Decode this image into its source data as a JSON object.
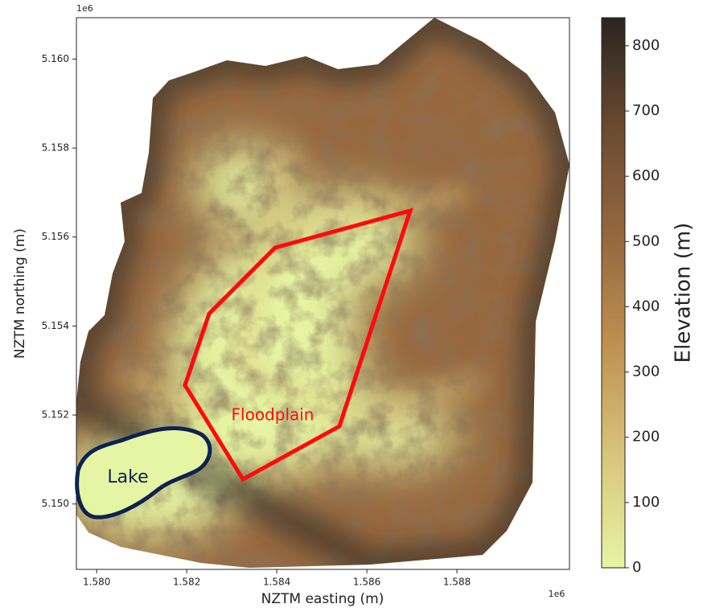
{
  "chart_data": {
    "type": "heatmap",
    "x_label": "NZTM easting (m)",
    "y_label": "NZTM northing (m)",
    "x_offset_label": "1e6",
    "y_offset_label": "1e6",
    "xlim": [
      1579550,
      1590500
    ],
    "ylim": [
      5148530,
      5160930
    ],
    "xticks": [
      {
        "value": 1580000,
        "label": "1.580"
      },
      {
        "value": 1582000,
        "label": "1.582"
      },
      {
        "value": 1584000,
        "label": "1.584"
      },
      {
        "value": 1586000,
        "label": "1.586"
      },
      {
        "value": 1588000,
        "label": "1.588"
      }
    ],
    "yticks": [
      {
        "value": 5150000,
        "label": "5.150"
      },
      {
        "value": 5152000,
        "label": "5.152"
      },
      {
        "value": 5154000,
        "label": "5.154"
      },
      {
        "value": 5156000,
        "label": "5.156"
      },
      {
        "value": 5158000,
        "label": "5.158"
      },
      {
        "value": 5160000,
        "label": "5.160"
      }
    ],
    "colorbar": {
      "label": "Elevation (m)",
      "lim": [
        0,
        843
      ],
      "ticks": [
        0,
        100,
        200,
        300,
        400,
        500,
        600,
        700,
        800
      ],
      "colors": [
        "#e6f5a3",
        "#d9c57c",
        "#bf9250",
        "#97683f",
        "#6a4a30",
        "#2a2520"
      ]
    },
    "annotations": [
      {
        "text": "Floodplain",
        "color": "#ff0a0a"
      },
      {
        "text": "Lake",
        "color": "#0c2352"
      }
    ]
  }
}
